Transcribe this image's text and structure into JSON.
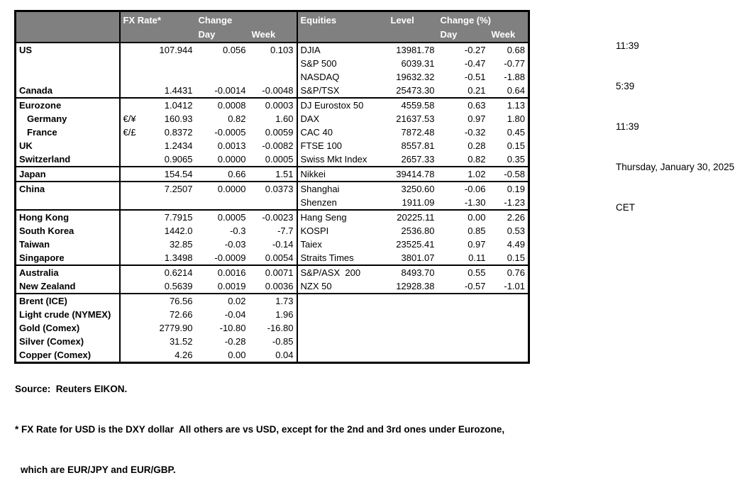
{
  "colors": {
    "header_bg": "#808080",
    "header_fg": "#ffffff",
    "border": "#000000"
  },
  "table": {
    "header": {
      "fx_rate": "FX Rate*",
      "change": "Change",
      "day": "Day",
      "week": "Week",
      "equities": "Equities",
      "level": "Level",
      "change_pct": "Change (%)"
    },
    "rows": [
      {
        "label": "US",
        "pair": "",
        "fx": "107.944",
        "fx_day": "0.056",
        "fx_week": "0.103",
        "eq": "DJIA",
        "level": "13981.78",
        "eq_day": "-0.27",
        "eq_week": "0.68",
        "sep": false,
        "indent": false
      },
      {
        "label": "",
        "pair": "",
        "fx": "",
        "fx_day": "",
        "fx_week": "",
        "eq": "S&P 500",
        "level": "6039.31",
        "eq_day": "-0.47",
        "eq_week": "-0.77",
        "sep": false,
        "indent": false
      },
      {
        "label": "",
        "pair": "",
        "fx": "",
        "fx_day": "",
        "fx_week": "",
        "eq": "NASDAQ",
        "level": "19632.32",
        "eq_day": "-0.51",
        "eq_week": "-1.88",
        "sep": false,
        "indent": false
      },
      {
        "label": "Canada",
        "pair": "",
        "fx": "1.4431",
        "fx_day": "-0.0014",
        "fx_week": "-0.0048",
        "eq": "S&P/TSX",
        "level": "25473.30",
        "eq_day": "0.21",
        "eq_week": "0.64",
        "sep": false,
        "indent": false
      },
      {
        "label": "Eurozone",
        "pair": "",
        "fx": "1.0412",
        "fx_day": "0.0008",
        "fx_week": "0.0003",
        "eq": "DJ Eurostox 50",
        "level": "4559.58",
        "eq_day": "0.63",
        "eq_week": "1.13",
        "sep": true,
        "indent": false
      },
      {
        "label": "Germany",
        "pair": "€/¥",
        "fx": "160.93",
        "fx_day": "0.82",
        "fx_week": "1.60",
        "eq": "DAX",
        "level": "21637.53",
        "eq_day": "0.97",
        "eq_week": "1.80",
        "sep": false,
        "indent": true
      },
      {
        "label": "France",
        "pair": "€/£",
        "fx": "0.8372",
        "fx_day": "-0.0005",
        "fx_week": "0.0059",
        "eq": "CAC 40",
        "level": "7872.48",
        "eq_day": "-0.32",
        "eq_week": "0.45",
        "sep": false,
        "indent": true
      },
      {
        "label": "UK",
        "pair": "",
        "fx": "1.2434",
        "fx_day": "0.0013",
        "fx_week": "-0.0082",
        "eq": "FTSE 100",
        "level": "8557.81",
        "eq_day": "0.28",
        "eq_week": "0.15",
        "sep": false,
        "indent": false
      },
      {
        "label": "Switzerland",
        "pair": "",
        "fx": "0.9065",
        "fx_day": "0.0000",
        "fx_week": "0.0005",
        "eq": "Swiss Mkt Index",
        "level": "2657.33",
        "eq_day": "0.82",
        "eq_week": "0.35",
        "sep": false,
        "indent": false
      },
      {
        "label": "Japan",
        "pair": "",
        "fx": "154.54",
        "fx_day": "0.66",
        "fx_week": "1.51",
        "eq": "Nikkei",
        "level": "39414.78",
        "eq_day": "1.02",
        "eq_week": "-0.58",
        "sep": true,
        "indent": false
      },
      {
        "label": "China",
        "pair": "",
        "fx": "7.2507",
        "fx_day": "0.0000",
        "fx_week": "0.0373",
        "eq": "Shanghai",
        "level": "3250.60",
        "eq_day": "-0.06",
        "eq_week": "0.19",
        "sep": true,
        "indent": false
      },
      {
        "label": "",
        "pair": "",
        "fx": "",
        "fx_day": "",
        "fx_week": "",
        "eq": "Shenzen",
        "level": "1911.09",
        "eq_day": "-1.30",
        "eq_week": "-1.23",
        "sep": false,
        "indent": false
      },
      {
        "label": "Hong Kong",
        "pair": "",
        "fx": "7.7915",
        "fx_day": "0.0005",
        "fx_week": "-0.0023",
        "eq": "Hang Seng",
        "level": "20225.11",
        "eq_day": "0.00",
        "eq_week": "2.26",
        "sep": true,
        "indent": false
      },
      {
        "label": "South Korea",
        "pair": "",
        "fx": "1442.0",
        "fx_day": "-0.3",
        "fx_week": "-7.7",
        "eq": "KOSPI",
        "level": "2536.80",
        "eq_day": "0.85",
        "eq_week": "0.53",
        "sep": false,
        "indent": false
      },
      {
        "label": "Taiwan",
        "pair": "",
        "fx": "32.85",
        "fx_day": "-0.03",
        "fx_week": "-0.14",
        "eq": "Taiex",
        "level": "23525.41",
        "eq_day": "0.97",
        "eq_week": "4.49",
        "sep": false,
        "indent": false
      },
      {
        "label": "Singapore",
        "pair": "",
        "fx": "1.3498",
        "fx_day": "-0.0009",
        "fx_week": "0.0054",
        "eq": "Straits Times",
        "level": "3801.07",
        "eq_day": "0.11",
        "eq_week": "0.15",
        "sep": false,
        "indent": false
      },
      {
        "label": "Australia",
        "pair": "",
        "fx": "0.6214",
        "fx_day": "0.0016",
        "fx_week": "0.0071",
        "eq": "S&P/ASX  200",
        "level": "8493.70",
        "eq_day": "0.55",
        "eq_week": "0.76",
        "sep": true,
        "indent": false
      },
      {
        "label": "New Zealand",
        "pair": "",
        "fx": "0.5639",
        "fx_day": "0.0019",
        "fx_week": "0.0036",
        "eq": "NZX 50",
        "level": "12928.38",
        "eq_day": "-0.57",
        "eq_week": "-1.01",
        "sep": false,
        "indent": false
      },
      {
        "label": "Brent (ICE)",
        "pair": "",
        "fx": "76.56",
        "fx_day": "0.02",
        "fx_week": "1.73",
        "eq": "",
        "level": "",
        "eq_day": "",
        "eq_week": "",
        "sep": true,
        "indent": false
      },
      {
        "label": "Light crude (NYMEX)",
        "pair": "",
        "fx": "72.66",
        "fx_day": "-0.04",
        "fx_week": "1.96",
        "eq": "",
        "level": "",
        "eq_day": "",
        "eq_week": "",
        "sep": false,
        "indent": false
      },
      {
        "label": "Gold (Comex)",
        "pair": "",
        "fx": "2779.90",
        "fx_day": "-10.80",
        "fx_week": "-16.80",
        "eq": "",
        "level": "",
        "eq_day": "",
        "eq_week": "",
        "sep": false,
        "indent": false
      },
      {
        "label": "Silver (Comex)",
        "pair": "",
        "fx": "31.52",
        "fx_day": "-0.28",
        "fx_week": "-0.85",
        "eq": "",
        "level": "",
        "eq_day": "",
        "eq_week": "",
        "sep": false,
        "indent": false
      },
      {
        "label": "Copper (Comex)",
        "pair": "",
        "fx": "4.26",
        "fx_day": "0.00",
        "fx_week": "0.04",
        "eq": "",
        "level": "",
        "eq_day": "",
        "eq_week": "",
        "sep": false,
        "indent": false
      }
    ]
  },
  "timestamps": {
    "lines": [
      "11:39",
      "5:39",
      "11:39",
      "Thursday, January 30, 2025",
      "CET"
    ]
  },
  "footer": {
    "source": "Source:  Reuters EIKON.",
    "note1": "* FX Rate for USD is the DXY dollar  All others are vs USD, except for the 2nd and 3rd ones under Eurozone,",
    "note2": "which are EUR/JPY and EUR/GBP."
  }
}
